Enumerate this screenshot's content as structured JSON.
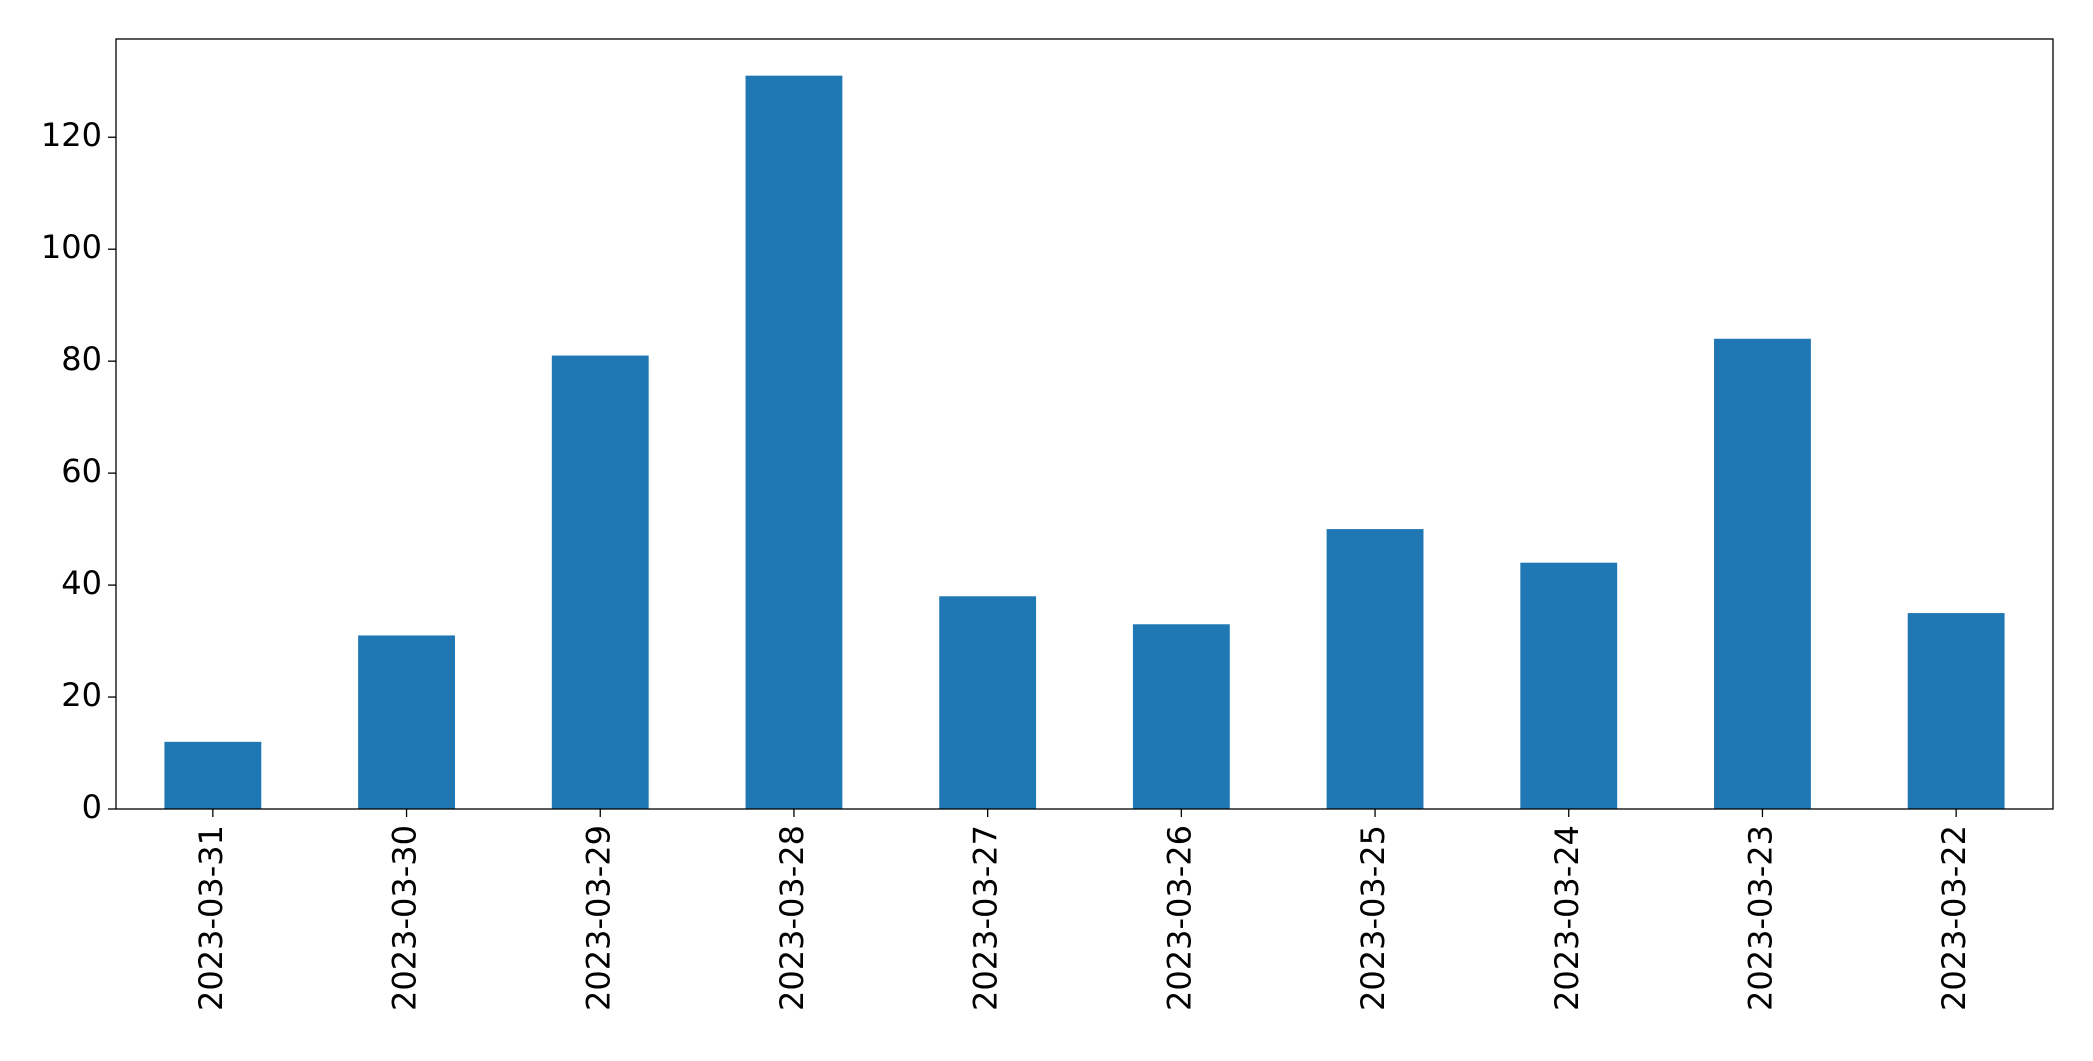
{
  "chart_data": {
    "type": "bar",
    "categories": [
      "2023-03-31",
      "2023-03-30",
      "2023-03-29",
      "2023-03-28",
      "2023-03-27",
      "2023-03-26",
      "2023-03-25",
      "2023-03-24",
      "2023-03-23",
      "2023-03-22"
    ],
    "values": [
      12,
      31,
      81,
      131,
      38,
      33,
      50,
      44,
      84,
      35
    ],
    "color": "#1f77b4",
    "ylim": [
      0,
      137.55
    ],
    "yticks": [
      0,
      20,
      40,
      60,
      80,
      100,
      120
    ],
    "grid": false
  }
}
